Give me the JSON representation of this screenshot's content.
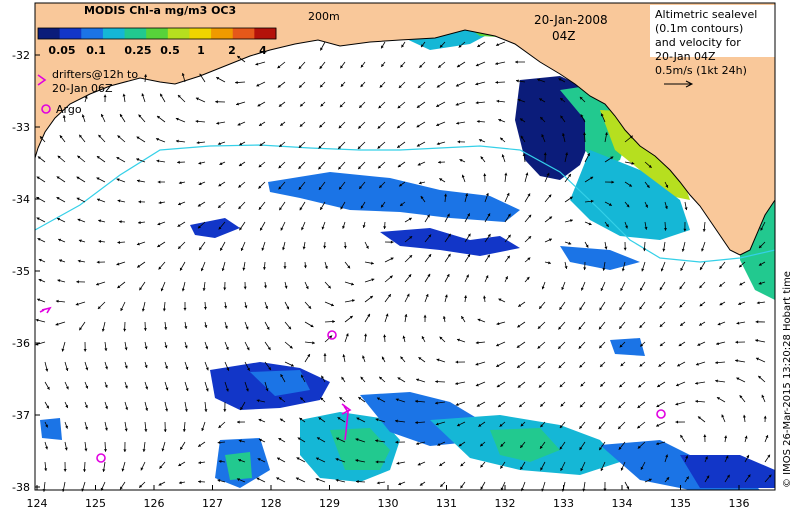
{
  "colorbar": {
    "title": "MODIS Chl-a mg/m3 OC3",
    "ticks": [
      "0.05",
      "0.1",
      "0.25",
      "0.5",
      "1",
      "2",
      "4"
    ],
    "colors": [
      "#0b1c7a",
      "#1236c8",
      "#1b74e6",
      "#15b7d6",
      "#22c98f",
      "#57d33a",
      "#b6df1f",
      "#f0d400",
      "#f09a00",
      "#e5581a",
      "#b4120a"
    ]
  },
  "isobath_label": "200m",
  "date": "20-Jan-2008",
  "time": "04Z",
  "info": {
    "line1": "Altimetric sealevel",
    "line2": "(0.1m contours)",
    "line3": "and velocity for",
    "line4": "20-Jan 04Z",
    "scale": "0.5m/s (1kt 24h)"
  },
  "legend": {
    "drifters_line1": "drifters@12h to",
    "drifters_line2": "20-Jan 06Z",
    "argo": "Argo"
  },
  "y_ticks": [
    "-32",
    "-33",
    "-34",
    "-35",
    "-36",
    "-37",
    "-38"
  ],
  "x_ticks": [
    "124",
    "125",
    "126",
    "127",
    "128",
    "129",
    "130",
    "131",
    "132",
    "133",
    "134",
    "135",
    "136"
  ],
  "credit": "© IMOS 26-Mar-2015 13:20:28 Hobart time",
  "colors": {
    "land": "#f9c89a",
    "coast": "#000000",
    "isobath": "#35d0e8",
    "marker": "#e000e0"
  }
}
